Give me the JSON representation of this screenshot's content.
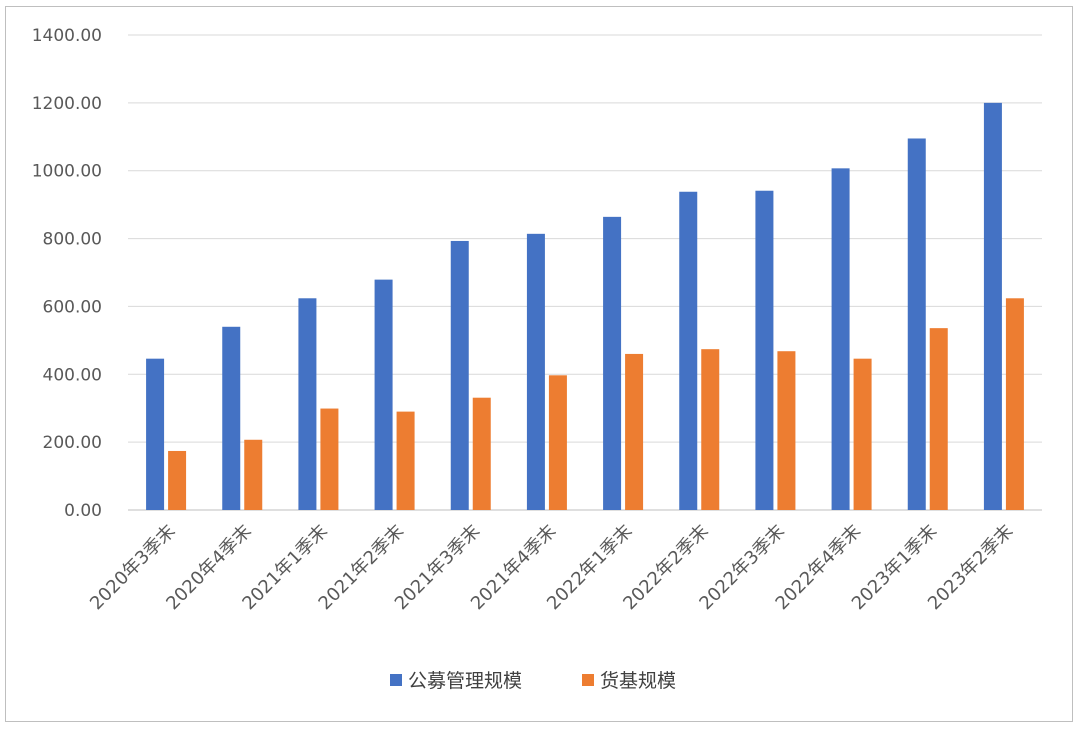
{
  "chart_data": {
    "type": "bar",
    "categories": [
      "2020年3季末",
      "2020年4季末",
      "2021年1季末",
      "2021年2季末",
      "2021年3季末",
      "2021年4季末",
      "2022年1季末",
      "2022年2季末",
      "2022年3季末",
      "2022年4季末",
      "2023年1季末",
      "2023年2季末"
    ],
    "series": [
      {
        "name": "公募管理规模",
        "color": "#4472c4",
        "values": [
          446,
          540,
          624,
          679,
          793,
          814,
          864,
          938,
          941,
          1007,
          1095,
          1200
        ]
      },
      {
        "name": "货基规模",
        "color": "#ed7d31",
        "values": [
          174,
          207,
          299,
          290,
          331,
          397,
          460,
          474,
          468,
          446,
          536,
          624
        ]
      }
    ],
    "ylim": [
      0,
      1400
    ],
    "yticks": [
      "0.00",
      "200.00",
      "400.00",
      "600.00",
      "800.00",
      "1000.00",
      "1200.00",
      "1400.00"
    ],
    "grid": true,
    "legend": "bottom",
    "title": "",
    "xlabel": "",
    "ylabel": ""
  }
}
